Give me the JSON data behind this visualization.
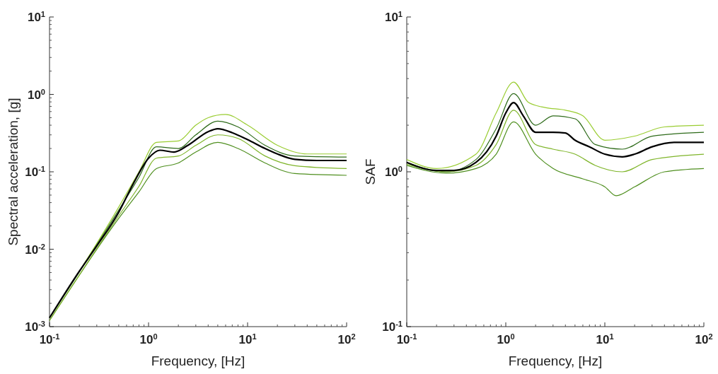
{
  "chart_data": [
    {
      "type": "line",
      "log": "xy",
      "xlabel": "Frequency, [Hz]",
      "ylabel": "Spectral acceleration, [g]",
      "xlim": [
        0.1,
        100
      ],
      "ylim": [
        0.001,
        10
      ],
      "xticks": [
        {
          "value": 0.1,
          "label": "10$^{-1}$"
        },
        {
          "value": 1,
          "label": "10$^{0}$"
        },
        {
          "value": 10,
          "label": "10$^{1}$"
        },
        {
          "value": 100,
          "label": "10$^{2}$"
        }
      ],
      "yticks": [
        {
          "value": 0.001,
          "label": "10$^{-3}$"
        },
        {
          "value": 0.01,
          "label": "10$^{-2}$"
        },
        {
          "value": 0.1,
          "label": "10$^{-1}$"
        },
        {
          "value": 1,
          "label": "10$^{0}$"
        },
        {
          "value": 10,
          "label": "10$^{1}$"
        }
      ],
      "series": [
        {
          "color": "#9acd32",
          "x": [
            0.1,
            0.5,
            0.8,
            1.2,
            2,
            3,
            4,
            6,
            10,
            20,
            40,
            100
          ],
          "values": [
            0.0013,
            0.035,
            0.1,
            0.24,
            0.25,
            0.4,
            0.5,
            0.55,
            0.4,
            0.22,
            0.17,
            0.17
          ]
        },
        {
          "color": "#4f8f1f",
          "x": [
            0.1,
            0.5,
            0.8,
            1.2,
            2,
            3,
            5,
            8,
            15,
            30,
            100
          ],
          "values": [
            0.0012,
            0.025,
            0.055,
            0.11,
            0.13,
            0.18,
            0.24,
            0.2,
            0.13,
            0.095,
            0.09
          ]
        },
        {
          "color": "#2e6b1a",
          "x": [
            0.1,
            0.5,
            0.8,
            1.2,
            2,
            3,
            5,
            8,
            15,
            30,
            100
          ],
          "values": [
            0.0013,
            0.032,
            0.085,
            0.21,
            0.2,
            0.3,
            0.45,
            0.38,
            0.22,
            0.16,
            0.155
          ]
        },
        {
          "color": "#7fb52a",
          "x": [
            0.1,
            0.5,
            0.8,
            1.2,
            2,
            3,
            5,
            8,
            15,
            30,
            100
          ],
          "values": [
            0.0012,
            0.027,
            0.065,
            0.15,
            0.16,
            0.22,
            0.3,
            0.27,
            0.16,
            0.12,
            0.11
          ]
        },
        {
          "color": "#000000",
          "x": [
            0.1,
            0.2,
            0.3,
            0.5,
            0.7,
            1,
            1.3,
            1.8,
            2.5,
            4,
            5,
            7,
            10,
            15,
            20,
            30,
            50,
            100
          ],
          "values": [
            0.0013,
            0.0052,
            0.011,
            0.03,
            0.07,
            0.15,
            0.19,
            0.18,
            0.22,
            0.33,
            0.36,
            0.32,
            0.26,
            0.2,
            0.17,
            0.145,
            0.14,
            0.14
          ]
        }
      ]
    },
    {
      "type": "line",
      "log": "xy",
      "xlabel": "Frequency, [Hz]",
      "ylabel": "SAF",
      "xlim": [
        0.1,
        100
      ],
      "ylim": [
        0.1,
        10
      ],
      "xticks": [
        {
          "value": 0.1,
          "label": "10$^{-1}$"
        },
        {
          "value": 1,
          "label": "10$^{0}$"
        },
        {
          "value": 10,
          "label": "10$^{1}$"
        },
        {
          "value": 100,
          "label": "10$^{2}$"
        }
      ],
      "yticks": [
        {
          "value": 0.1,
          "label": "10$^{-1}$"
        },
        {
          "value": 1,
          "label": "10$^{0}$"
        },
        {
          "value": 10,
          "label": "10$^{1}$"
        }
      ],
      "series": [
        {
          "color": "#9acd32",
          "x": [
            0.1,
            0.2,
            0.5,
            0.8,
            1.2,
            1.7,
            2.5,
            4,
            6,
            10,
            20,
            40,
            100
          ],
          "values": [
            1.2,
            1.05,
            1.3,
            2.4,
            3.8,
            2.8,
            2.6,
            2.5,
            2.3,
            1.6,
            1.7,
            1.95,
            2.0
          ]
        },
        {
          "color": "#4f8f1f",
          "x": [
            0.1,
            0.25,
            0.5,
            0.8,
            1.2,
            2,
            3,
            6,
            10,
            13,
            20,
            40,
            100
          ],
          "values": [
            1.1,
            0.98,
            1.05,
            1.3,
            2.1,
            1.3,
            1.05,
            0.9,
            0.8,
            0.7,
            0.8,
            1.0,
            1.05
          ]
        },
        {
          "color": "#2e6b1a",
          "x": [
            0.1,
            0.25,
            0.5,
            0.8,
            1.2,
            2,
            3,
            5,
            8,
            15,
            30,
            100
          ],
          "values": [
            1.15,
            1.0,
            1.2,
            1.9,
            3.2,
            2.0,
            2.3,
            2.2,
            1.5,
            1.4,
            1.7,
            1.8
          ]
        },
        {
          "color": "#7fb52a",
          "x": [
            0.1,
            0.25,
            0.5,
            0.8,
            1.2,
            2,
            3,
            5,
            8,
            15,
            30,
            100
          ],
          "values": [
            1.12,
            1.0,
            1.1,
            1.5,
            2.5,
            1.5,
            1.4,
            1.3,
            1.1,
            1.0,
            1.2,
            1.3
          ]
        },
        {
          "color": "#000000",
          "x": [
            0.1,
            0.2,
            0.3,
            0.5,
            0.8,
            1,
            1.2,
            1.5,
            2,
            3,
            4,
            5,
            7,
            10,
            15,
            20,
            30,
            50,
            100
          ],
          "values": [
            1.15,
            1.02,
            1.02,
            1.15,
            1.7,
            2.4,
            2.8,
            2.3,
            1.8,
            1.8,
            1.78,
            1.6,
            1.45,
            1.3,
            1.25,
            1.3,
            1.45,
            1.55,
            1.55
          ]
        }
      ]
    }
  ]
}
